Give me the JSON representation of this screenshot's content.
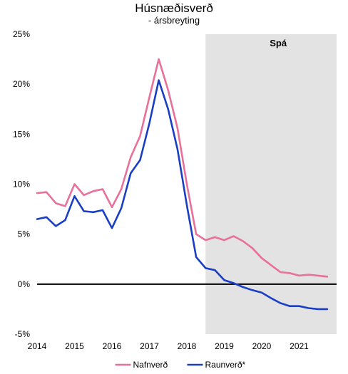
{
  "chart_data": {
    "type": "line",
    "title": "Húsnæðisverð",
    "subtitle": "- ársbreyting",
    "xlabel": "",
    "ylabel": "",
    "ylim": [
      -5,
      25
    ],
    "y_ticks": [
      -5,
      0,
      5,
      10,
      15,
      20,
      25
    ],
    "y_tick_labels": [
      "-5%",
      "0%",
      "5%",
      "10%",
      "15%",
      "20%",
      "25%"
    ],
    "x_range": [
      2014,
      2022
    ],
    "x_ticks": [
      2014,
      2015,
      2016,
      2017,
      2018,
      2019,
      2020,
      2021
    ],
    "x_tick_labels": [
      "2014",
      "2015",
      "2016",
      "2017",
      "2018",
      "2019",
      "2020",
      "2021"
    ],
    "grid": false,
    "zero_line": true,
    "forecast": {
      "label": "Spá",
      "start": 2018.5,
      "end": 2022.0,
      "color": "#e3e3e3"
    },
    "legend_position": "bottom",
    "series": [
      {
        "name": "Nafnverð",
        "color": "#e8709a",
        "x": [
          2014.0,
          2014.25,
          2014.5,
          2014.75,
          2015.0,
          2015.25,
          2015.5,
          2015.75,
          2016.0,
          2016.25,
          2016.5,
          2016.75,
          2017.0,
          2017.25,
          2017.5,
          2017.75,
          2018.0,
          2018.25,
          2018.5,
          2018.75,
          2019.0,
          2019.25,
          2019.5,
          2019.75,
          2020.0,
          2020.25,
          2020.5,
          2020.75,
          2021.0,
          2021.25,
          2021.5,
          2021.75
        ],
        "values": [
          9.1,
          9.2,
          8.1,
          7.8,
          10.0,
          8.9,
          9.3,
          9.5,
          7.7,
          9.5,
          12.7,
          14.8,
          18.7,
          22.5,
          19.4,
          15.6,
          10.0,
          5.0,
          4.4,
          4.7,
          4.4,
          4.8,
          4.3,
          3.6,
          2.6,
          1.9,
          1.2,
          1.1,
          0.85,
          0.95,
          0.85,
          0.75
        ]
      },
      {
        "name": "Raunverð*",
        "color": "#1a3fc4",
        "x": [
          2014.0,
          2014.25,
          2014.5,
          2014.75,
          2015.0,
          2015.25,
          2015.5,
          2015.75,
          2016.0,
          2016.25,
          2016.5,
          2016.75,
          2017.0,
          2017.25,
          2017.5,
          2017.75,
          2018.0,
          2018.25,
          2018.5,
          2018.75,
          2019.0,
          2019.25,
          2019.5,
          2019.75,
          2020.0,
          2020.25,
          2020.5,
          2020.75,
          2021.0,
          2021.25,
          2021.5,
          2021.75
        ],
        "values": [
          6.5,
          6.7,
          5.8,
          6.4,
          8.8,
          7.3,
          7.2,
          7.4,
          5.6,
          7.6,
          11.1,
          12.4,
          16.1,
          20.4,
          17.5,
          13.5,
          7.9,
          2.7,
          1.6,
          1.4,
          0.4,
          0.1,
          -0.3,
          -0.6,
          -0.85,
          -1.4,
          -1.9,
          -2.2,
          -2.2,
          -2.4,
          -2.5,
          -2.5
        ]
      }
    ]
  }
}
